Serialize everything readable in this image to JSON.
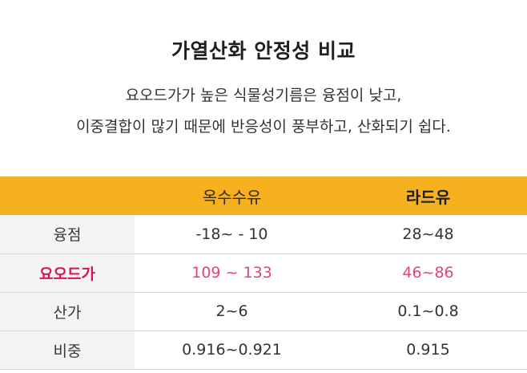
{
  "title": "가열산화 안정성 비교",
  "description": [
    "요오드가가 높은 식물성기름은 융점이 낮고,",
    "이중결합이 많기 때문에 반응성이 풍부하고, 산화되기 쉽다."
  ],
  "colors": {
    "header_bg": "#f7b01e",
    "accent": "#d4145a",
    "accent_value": "#e0457a",
    "row_label_bg": "#f3f3f3"
  },
  "table": {
    "columns": [
      "",
      "옥수수유",
      "라드유"
    ],
    "rows": [
      {
        "label": "융점",
        "values": [
          "-18~ - 10",
          "28~48"
        ]
      },
      {
        "label": "요오드가",
        "values": [
          "109 ~ 133",
          "46~86"
        ]
      },
      {
        "label": "산가",
        "values": [
          "2~6",
          "0.1~0.8"
        ]
      },
      {
        "label": "비중",
        "values": [
          "0.916~0.921",
          "0.915"
        ]
      }
    ]
  }
}
